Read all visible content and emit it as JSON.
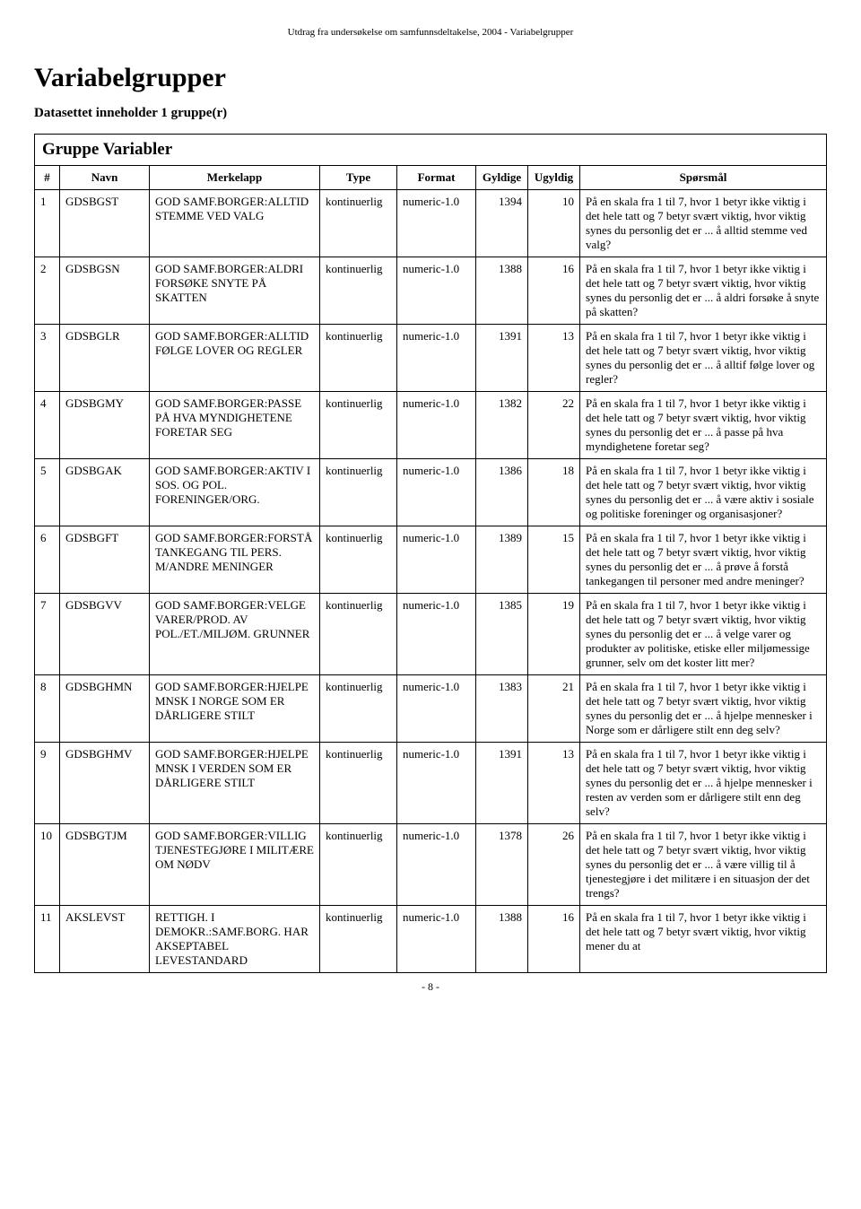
{
  "header_text": "Utdrag fra undersøkelse om samfunnsdeltakelse, 2004 - Variabelgrupper",
  "title": "Variabelgrupper",
  "subtitle": "Datasettet inneholder 1 gruppe(r)",
  "group_title": "Gruppe Variabler",
  "footer": "- 8 -",
  "columns": [
    "#",
    "Navn",
    "Merkelapp",
    "Type",
    "Format",
    "Gyldige",
    "Ugyldig",
    "Spørsmål"
  ],
  "rows": [
    {
      "num": "1",
      "navn": "GDSBGST",
      "merk": "GOD SAMF.BORGER:ALLTID STEMME VED VALG",
      "type": "kontinuerlig",
      "format": "numeric-1.0",
      "gyldige": "1394",
      "ugyldig": "10",
      "spor": "På en skala fra 1 til 7, hvor 1 betyr ikke viktig i det hele tatt og 7 betyr svært viktig, hvor viktig synes du personlig det er ... å alltid stemme ved valg?"
    },
    {
      "num": "2",
      "navn": "GDSBGSN",
      "merk": "GOD SAMF.BORGER:ALDRI FORSØKE SNYTE PÅ SKATTEN",
      "type": "kontinuerlig",
      "format": "numeric-1.0",
      "gyldige": "1388",
      "ugyldig": "16",
      "spor": "På en skala fra 1 til 7, hvor 1 betyr ikke viktig i det hele tatt og 7 betyr svært viktig, hvor viktig synes du personlig det er ... å aldri forsøke å snyte på skatten?"
    },
    {
      "num": "3",
      "navn": "GDSBGLR",
      "merk": "GOD SAMF.BORGER:ALLTID FØLGE LOVER OG REGLER",
      "type": "kontinuerlig",
      "format": "numeric-1.0",
      "gyldige": "1391",
      "ugyldig": "13",
      "spor": "På en skala fra 1 til 7, hvor 1 betyr ikke viktig i det hele tatt og 7 betyr svært viktig, hvor viktig synes du personlig det er ... å alltif følge lover og regler?"
    },
    {
      "num": "4",
      "navn": "GDSBGMY",
      "merk": "GOD SAMF.BORGER:PASSE PÅ HVA MYNDIGHETENE FORETAR SEG",
      "type": "kontinuerlig",
      "format": "numeric-1.0",
      "gyldige": "1382",
      "ugyldig": "22",
      "spor": "På en skala fra 1 til 7, hvor 1 betyr ikke viktig i det hele tatt og 7 betyr svært viktig, hvor viktig synes du personlig det er ... å passe på hva myndighetene foretar seg?"
    },
    {
      "num": "5",
      "navn": "GDSBGAK",
      "merk": "GOD SAMF.BORGER:AKTIV I SOS. OG POL. FORENINGER/ORG.",
      "type": "kontinuerlig",
      "format": "numeric-1.0",
      "gyldige": "1386",
      "ugyldig": "18",
      "spor": "På en skala fra 1 til 7, hvor 1 betyr ikke viktig i det hele tatt og 7 betyr svært viktig, hvor viktig synes du personlig det er ... å være aktiv i sosiale og politiske foreninger og organisasjoner?"
    },
    {
      "num": "6",
      "navn": "GDSBGFT",
      "merk": "GOD SAMF.BORGER:FORSTÅ TANKEGANG TIL PERS. M/ANDRE MENINGER",
      "type": "kontinuerlig",
      "format": "numeric-1.0",
      "gyldige": "1389",
      "ugyldig": "15",
      "spor": "På en skala fra 1 til 7, hvor 1 betyr ikke viktig i det hele tatt og 7 betyr svært viktig, hvor viktig synes du personlig det er ... å prøve å forstå tankegangen til personer med andre meninger?"
    },
    {
      "num": "7",
      "navn": "GDSBGVV",
      "merk": "GOD SAMF.BORGER:VELGE VARER/PROD. AV POL./ET./MILJØM. GRUNNER",
      "type": "kontinuerlig",
      "format": "numeric-1.0",
      "gyldige": "1385",
      "ugyldig": "19",
      "spor": "På en skala fra 1 til 7, hvor 1 betyr ikke viktig i det hele tatt og 7 betyr svært viktig, hvor viktig synes du personlig det er ... å velge varer og produkter av politiske, etiske eller miljømessige grunner, selv om det koster litt mer?"
    },
    {
      "num": "8",
      "navn": "GDSBGHMN",
      "merk": "GOD SAMF.BORGER:HJELPE MNSK I NORGE SOM ER DÅRLIGERE STILT",
      "type": "kontinuerlig",
      "format": "numeric-1.0",
      "gyldige": "1383",
      "ugyldig": "21",
      "spor": "På en skala fra 1 til 7, hvor 1 betyr ikke viktig i det hele tatt og 7 betyr svært viktig, hvor viktig synes du personlig det er ... å hjelpe mennesker i Norge som er dårligere stilt enn deg selv?"
    },
    {
      "num": "9",
      "navn": "GDSBGHMV",
      "merk": "GOD SAMF.BORGER:HJELPE MNSK I VERDEN SOM ER DÅRLIGERE STILT",
      "type": "kontinuerlig",
      "format": "numeric-1.0",
      "gyldige": "1391",
      "ugyldig": "13",
      "spor": "På en skala fra 1 til 7, hvor 1 betyr ikke viktig i det hele tatt og 7 betyr svært viktig, hvor viktig synes du personlig det er ... å hjelpe mennesker i resten av verden som er dårligere stilt enn deg selv?"
    },
    {
      "num": "10",
      "navn": "GDSBGTJM",
      "merk": "GOD SAMF.BORGER:VILLIG TJENESTEGJØRE I MILITÆRE OM NØDV",
      "type": "kontinuerlig",
      "format": "numeric-1.0",
      "gyldige": "1378",
      "ugyldig": "26",
      "spor": "På en skala fra 1 til 7, hvor 1 betyr ikke viktig i det hele tatt og 7 betyr svært viktig, hvor viktig synes du personlig det er ... å være villig til å tjenestegjøre i det militære i en situasjon der det trengs?"
    },
    {
      "num": "11",
      "navn": "AKSLEVST",
      "merk": "RETTIGH. I DEMOKR.:SAMF.BORG. HAR AKSEPTABEL LEVESTANDARD",
      "type": "kontinuerlig",
      "format": "numeric-1.0",
      "gyldige": "1388",
      "ugyldig": "16",
      "spor": "På en skala fra 1 til 7, hvor 1 betyr ikke viktig i det hele tatt og 7 betyr svært viktig, hvor viktig mener du at"
    }
  ]
}
